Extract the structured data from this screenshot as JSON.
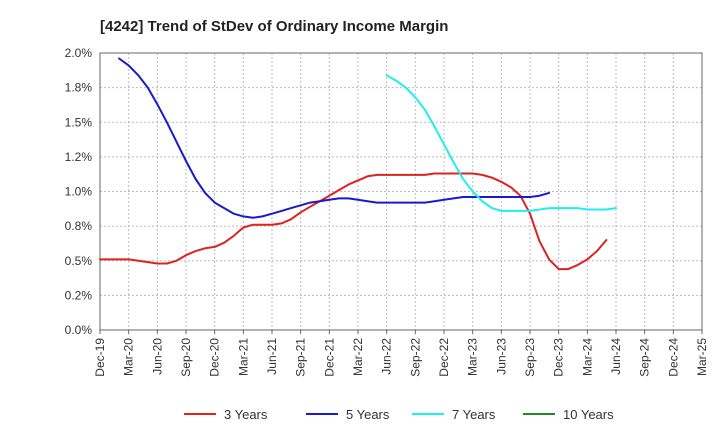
{
  "chart_data": {
    "type": "line",
    "title": "[4242]  Trend of StDev of Ordinary Income Margin",
    "xlabel": "",
    "ylabel": "",
    "ylim": [
      0,
      2.0
    ],
    "y_ticks": [
      "0.0%",
      "0.2%",
      "0.5%",
      "0.8%",
      "1.0%",
      "1.2%",
      "1.5%",
      "1.8%",
      "2.0%"
    ],
    "x_ticks": [
      "Dec-19",
      "Mar-20",
      "Jun-20",
      "Sep-20",
      "Dec-20",
      "Mar-21",
      "Jun-21",
      "Sep-21",
      "Dec-21",
      "Mar-22",
      "Jun-22",
      "Sep-22",
      "Dec-22",
      "Mar-23",
      "Jun-23",
      "Sep-23",
      "Dec-23",
      "Mar-24",
      "Jun-24",
      "Sep-24",
      "Dec-24",
      "Mar-25"
    ],
    "grid": true,
    "legend_position": "bottom",
    "series": [
      {
        "name": "3 Years",
        "color": "#dd2222",
        "start_index": 0,
        "values": [
          0.51,
          0.51,
          0.51,
          0.51,
          0.5,
          0.49,
          0.48,
          0.48,
          0.5,
          0.54,
          0.57,
          0.59,
          0.6,
          0.63,
          0.68,
          0.74,
          0.76,
          0.76,
          0.76,
          0.77,
          0.8,
          0.85,
          0.89,
          0.93,
          0.97,
          1.01,
          1.05,
          1.08,
          1.11,
          1.12,
          1.12,
          1.12,
          1.12,
          1.12,
          1.12,
          1.13,
          1.13,
          1.13,
          1.13,
          1.13,
          1.12,
          1.1,
          1.07,
          1.03,
          0.97,
          0.84,
          0.64,
          0.51,
          0.44,
          0.44,
          0.47,
          0.51,
          0.57,
          0.65
        ]
      },
      {
        "name": "5 Years",
        "color": "#1a1acc",
        "start_index": 2,
        "values": [
          1.96,
          1.91,
          1.84,
          1.75,
          1.63,
          1.5,
          1.36,
          1.22,
          1.09,
          0.99,
          0.92,
          0.88,
          0.84,
          0.82,
          0.81,
          0.82,
          0.84,
          0.86,
          0.88,
          0.9,
          0.92,
          0.93,
          0.94,
          0.95,
          0.95,
          0.94,
          0.93,
          0.92,
          0.92,
          0.92,
          0.92,
          0.92,
          0.92,
          0.93,
          0.94,
          0.95,
          0.96,
          0.96,
          0.96,
          0.96,
          0.96,
          0.96,
          0.96,
          0.96,
          0.97,
          0.99
        ]
      },
      {
        "name": "7 Years",
        "color": "#22eeee",
        "start_index": 30,
        "values": [
          1.84,
          1.8,
          1.75,
          1.68,
          1.59,
          1.47,
          1.34,
          1.21,
          1.09,
          1.0,
          0.93,
          0.88,
          0.86,
          0.86,
          0.86,
          0.86,
          0.87,
          0.88,
          0.88,
          0.88,
          0.88,
          0.87,
          0.87,
          0.87,
          0.88
        ]
      },
      {
        "name": "10 Years",
        "color": "#228822",
        "start_index": 0,
        "values": []
      }
    ]
  }
}
